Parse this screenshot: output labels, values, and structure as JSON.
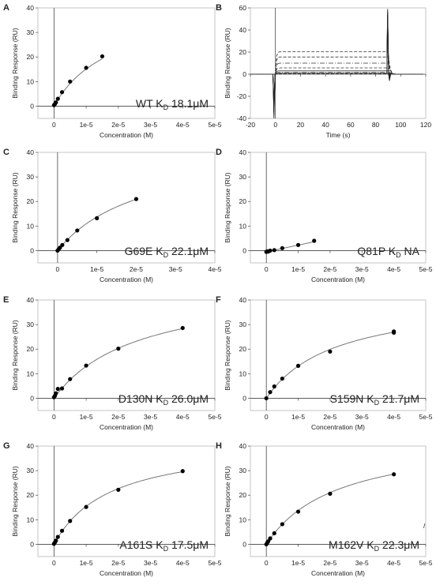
{
  "figure": {
    "stray_mark": "/"
  },
  "chart_data": [
    {
      "panel": "A",
      "type": "scatter",
      "xlabel": "Concentration (M)",
      "ylabel": "Binding Response (RU)",
      "xlim": [
        -5e-06,
        5e-05
      ],
      "ylim": [
        -5,
        40
      ],
      "xticks": [
        0,
        1e-05,
        2e-05,
        3e-05,
        4e-05,
        5e-05
      ],
      "xtick_labels": [
        "0",
        "1e-5",
        "2e-5",
        "3e-5",
        "4e-5",
        "5e-5"
      ],
      "yticks": [
        0,
        10,
        20,
        30,
        40
      ],
      "ytick_labels": [
        "0",
        "10",
        "20",
        "30",
        "40"
      ],
      "x": [
        0,
        3e-07,
        6e-07,
        1.2e-06,
        2.5e-06,
        5e-06,
        1e-05,
        1.5e-05
      ],
      "y": [
        0.4,
        0.9,
        1.5,
        3.0,
        5.7,
        10.0,
        15.6,
        20.3
      ],
      "fit": {
        "rmax": 42.5,
        "kd": 1.81e-05,
        "x_end": 1.5e-05
      },
      "annotation": {
        "prefix": "WT K",
        "sub": "D",
        "suffix": " 18.1μM"
      }
    },
    {
      "panel": "B",
      "type": "line",
      "xlabel": "Time (s)",
      "ylabel": "Binding Response (RU)",
      "xlim": [
        -20,
        120
      ],
      "ylim": [
        -40,
        60
      ],
      "xticks": [
        -20,
        0,
        20,
        40,
        60,
        80,
        100,
        120
      ],
      "xtick_labels": [
        "-20",
        "0",
        "20",
        "40",
        "60",
        "80",
        "100",
        "120"
      ],
      "yticks": [
        -40,
        -20,
        0,
        20,
        40,
        60
      ],
      "ytick_labels": [
        "-40",
        "-20",
        "0",
        "20",
        "40",
        "60"
      ],
      "association_start": 0,
      "dissociation_start": 90,
      "series": [
        {
          "plateau": 20.3,
          "style": "dashed"
        },
        {
          "plateau": 15.6,
          "style": "dashed"
        },
        {
          "plateau": 10.0,
          "style": "dashdot"
        },
        {
          "plateau": 5.7,
          "style": "dashed"
        },
        {
          "plateau": 3.0,
          "style": "solid"
        },
        {
          "plateau": 1.5,
          "style": "dashdot"
        },
        {
          "plateau": 0.9,
          "style": "solid"
        },
        {
          "plateau": 0.4,
          "style": "dashed"
        }
      ]
    },
    {
      "panel": "C",
      "type": "scatter",
      "xlabel": "Concentration (M)",
      "ylabel": "Binding Response (RU)",
      "xlim": [
        -5e-06,
        4e-05
      ],
      "ylim": [
        -5,
        40
      ],
      "xticks": [
        0,
        1e-05,
        2e-05,
        3e-05,
        4e-05
      ],
      "xtick_labels": [
        "0",
        "1e-5",
        "2e-5",
        "3e-5",
        "4e-5"
      ],
      "yticks": [
        0,
        10,
        20,
        30,
        40
      ],
      "ytick_labels": [
        "0",
        "10",
        "20",
        "30",
        "40"
      ],
      "x": [
        0,
        3e-07,
        6e-07,
        1.2e-06,
        2.5e-06,
        5e-06,
        1e-05,
        2e-05
      ],
      "y": [
        0,
        0.6,
        1.2,
        2.3,
        4.3,
        8.2,
        13.2,
        21.0
      ],
      "fit": {
        "rmax": 44.0,
        "kd": 2.21e-05,
        "x_end": 2e-05
      },
      "annotation": {
        "prefix": "G69E K",
        "sub": "D",
        "suffix": " 22.1μM"
      }
    },
    {
      "panel": "D",
      "type": "scatter",
      "xlabel": "Concentration (M)",
      "ylabel": "Binding Response (RU)",
      "xlim": [
        -5e-06,
        5e-05
      ],
      "ylim": [
        -5,
        40
      ],
      "xticks": [
        0,
        1e-05,
        2e-05,
        3e-05,
        4e-05,
        5e-05
      ],
      "xtick_labels": [
        "0",
        "1e-5",
        "2e-5",
        "3e-5",
        "4e-5",
        "5e-5"
      ],
      "yticks": [
        0,
        10,
        20,
        30,
        40
      ],
      "ytick_labels": [
        "0",
        "10",
        "20",
        "30",
        "40"
      ],
      "x": [
        0,
        3e-07,
        6e-07,
        1.2e-06,
        2.5e-06,
        5e-06,
        1e-05,
        1.5e-05
      ],
      "y": [
        -0.5,
        -0.3,
        -0.4,
        0.0,
        0.2,
        1.0,
        2.3,
        4.0
      ],
      "fit": {
        "line": [
          [
            0,
            -0.5
          ],
          [
            1.5e-05,
            3.6
          ]
        ]
      },
      "annotation": {
        "prefix": "Q81P K",
        "sub": "D",
        "suffix": " NA"
      }
    },
    {
      "panel": "E",
      "type": "scatter",
      "xlabel": "Concentration (M)",
      "ylabel": "Binding Response (RU)",
      "xlim": [
        -5e-06,
        5e-05
      ],
      "ylim": [
        -5,
        40
      ],
      "xticks": [
        0,
        1e-05,
        2e-05,
        3e-05,
        4e-05,
        5e-05
      ],
      "xtick_labels": [
        "0",
        "1e-5",
        "2e-5",
        "3e-5",
        "4e-5",
        "5e-5"
      ],
      "yticks": [
        0,
        10,
        20,
        30,
        40
      ],
      "ytick_labels": [
        "0",
        "10",
        "20",
        "30",
        "40"
      ],
      "x": [
        0,
        3e-07,
        6e-07,
        1.2e-06,
        2.5e-06,
        5e-06,
        1e-05,
        2e-05,
        4e-05
      ],
      "y": [
        0.4,
        1.0,
        2.0,
        3.8,
        4.0,
        7.8,
        13.3,
        20.2,
        28.6
      ],
      "fit": {
        "rmax": 46.8,
        "kd": 2.6e-05,
        "x_end": 4e-05
      },
      "annotation": {
        "prefix": "D130N K",
        "sub": "D",
        "suffix": " 26.0μM"
      }
    },
    {
      "panel": "F",
      "type": "scatter",
      "xlabel": "Concentration (M)",
      "ylabel": "Binding Response (RU)",
      "xlim": [
        -5e-06,
        5e-05
      ],
      "ylim": [
        -5,
        40
      ],
      "xticks": [
        0,
        1e-05,
        2e-05,
        3e-05,
        4e-05,
        5e-05
      ],
      "xtick_labels": [
        "0",
        "1e-5",
        "2e-5",
        "3e-5",
        "4e-5",
        "5e-5"
      ],
      "yticks": [
        0,
        10,
        20,
        30,
        40
      ],
      "ytick_labels": [
        "0",
        "10",
        "20",
        "30",
        "40"
      ],
      "x": [
        0,
        1.2e-06,
        2.5e-06,
        5e-06,
        1e-05,
        2e-05,
        4e-05,
        4e-05
      ],
      "y": [
        0,
        2.5,
        4.8,
        8.0,
        13.2,
        19.0,
        26.7,
        27.2
      ],
      "fit": {
        "rmax": 41.5,
        "kd": 2.17e-05,
        "x_end": 4e-05
      },
      "annotation": {
        "prefix": "S159N K",
        "sub": "D",
        "suffix": " 21.7μM"
      }
    },
    {
      "panel": "G",
      "type": "scatter",
      "xlabel": "Concentration (M)",
      "ylabel": "Binding Response (RU)",
      "xlim": [
        -5e-06,
        5e-05
      ],
      "ylim": [
        -5,
        40
      ],
      "xticks": [
        0,
        1e-05,
        2e-05,
        3e-05,
        4e-05,
        5e-05
      ],
      "xtick_labels": [
        "0",
        "1e-5",
        "2e-5",
        "3e-5",
        "4e-5",
        "5e-5"
      ],
      "yticks": [
        0,
        10,
        20,
        30,
        40
      ],
      "ytick_labels": [
        "0",
        "10",
        "20",
        "30",
        "40"
      ],
      "x": [
        0,
        3e-07,
        6e-07,
        1.2e-06,
        2.5e-06,
        5e-06,
        1e-05,
        2e-05,
        4e-05
      ],
      "y": [
        0.2,
        0.8,
        1.5,
        3.0,
        5.5,
        9.5,
        15.2,
        22.2,
        29.8
      ],
      "fit": {
        "rmax": 42.5,
        "kd": 1.75e-05,
        "x_end": 4e-05
      },
      "annotation": {
        "prefix": "A161S K",
        "sub": "D",
        "suffix": " 17.5μM"
      }
    },
    {
      "panel": "H",
      "type": "scatter",
      "xlabel": "Concentration (M)",
      "ylabel": "Binding Response (RU)",
      "xlim": [
        -5e-06,
        5e-05
      ],
      "ylim": [
        -5,
        40
      ],
      "xticks": [
        0,
        1e-05,
        2e-05,
        3e-05,
        4e-05,
        5e-05
      ],
      "xtick_labels": [
        "0",
        "1e-5",
        "2e-5",
        "3e-5",
        "4e-5",
        "5e-5"
      ],
      "yticks": [
        0,
        10,
        20,
        30,
        40
      ],
      "ytick_labels": [
        "0",
        "10",
        "20",
        "30",
        "40"
      ],
      "x": [
        0,
        3e-07,
        6e-07,
        1.2e-06,
        2.5e-06,
        5e-06,
        1e-05,
        2e-05,
        4e-05
      ],
      "y": [
        0.0,
        0.6,
        1.2,
        2.4,
        4.5,
        8.2,
        13.3,
        20.6,
        28.5
      ],
      "fit": {
        "rmax": 44.5,
        "kd": 2.23e-05,
        "x_end": 4e-05
      },
      "annotation": {
        "prefix": "M162V K",
        "sub": "D",
        "suffix": " 22.3μM"
      }
    }
  ]
}
